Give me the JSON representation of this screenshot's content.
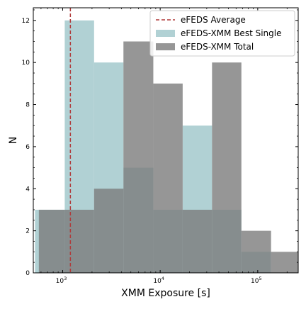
{
  "chart_data": {
    "type": "bar",
    "subtype": "histogram",
    "xscale": "log",
    "xlabel": "XMM Exposure [s]",
    "ylabel": "N",
    "xlim": [
      500,
      260000
    ],
    "ylim": [
      0,
      12.6
    ],
    "yticks": [
      0,
      2,
      4,
      6,
      8,
      10,
      12
    ],
    "xticks": [
      {
        "value": 1000,
        "label_base": "10",
        "label_exp": "3"
      },
      {
        "value": 10000,
        "label_base": "10",
        "label_exp": "4"
      },
      {
        "value": 100000,
        "label_base": "10",
        "label_exp": "5"
      }
    ],
    "grid": false,
    "legend_position": "top-right",
    "reference_line": {
      "name": "eFEDS Average",
      "x": 1200,
      "color": "#b03a3a",
      "style": "dashed"
    },
    "series": [
      {
        "name": "eFEDS-XMM Best Single",
        "color": "#9ec5c9",
        "opacity": 0.8,
        "bins": [
          {
            "x0": 520,
            "x1": 1050,
            "count": 3
          },
          {
            "x0": 1050,
            "x1": 2100,
            "count": 12
          },
          {
            "x0": 2100,
            "x1": 4200,
            "count": 10
          },
          {
            "x0": 4200,
            "x1": 8500,
            "count": 5
          },
          {
            "x0": 8500,
            "x1": 17000,
            "count": 3
          },
          {
            "x0": 17000,
            "x1": 34000,
            "count": 7
          },
          {
            "x0": 34000,
            "x1": 68000,
            "count": 3
          },
          {
            "x0": 68000,
            "x1": 137000,
            "count": 1
          }
        ]
      },
      {
        "name": "eFEDS-XMM Total",
        "color": "#7c7c7c",
        "opacity": 0.8,
        "bins": [
          {
            "x0": 570,
            "x1": 1050,
            "count": 3
          },
          {
            "x0": 1050,
            "x1": 2100,
            "count": 3
          },
          {
            "x0": 2100,
            "x1": 4200,
            "count": 4
          },
          {
            "x0": 4200,
            "x1": 8500,
            "count": 11
          },
          {
            "x0": 8500,
            "x1": 17000,
            "count": 9
          },
          {
            "x0": 17000,
            "x1": 34000,
            "count": 3
          },
          {
            "x0": 34000,
            "x1": 68000,
            "count": 10
          },
          {
            "x0": 68000,
            "x1": 137000,
            "count": 2
          },
          {
            "x0": 137000,
            "x1": 260000,
            "count": 1
          }
        ]
      }
    ]
  }
}
